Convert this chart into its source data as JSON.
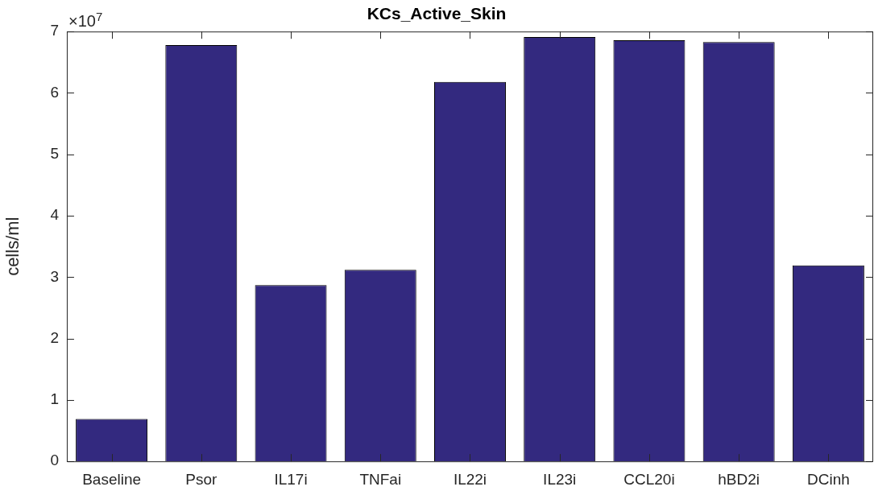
{
  "chart_data": {
    "type": "bar",
    "title": "KCs_Active_Skin",
    "ylabel": "cells/ml",
    "categories": [
      "Baseline",
      "Psor",
      "IL17i",
      "TNFai",
      "IL22i",
      "IL23i",
      "CCL20i",
      "hBD2i",
      "DCinh"
    ],
    "values": [
      0.69,
      6.78,
      2.87,
      3.12,
      6.18,
      6.91,
      6.86,
      6.83,
      3.19
    ],
    "color": "#33297f",
    "ylim": [
      0,
      7
    ],
    "yticks": [
      0,
      1,
      2,
      3,
      4,
      5,
      6,
      7
    ],
    "grid": false,
    "legend": false,
    "annotations": [
      "×10$^{7}$"
    ]
  }
}
